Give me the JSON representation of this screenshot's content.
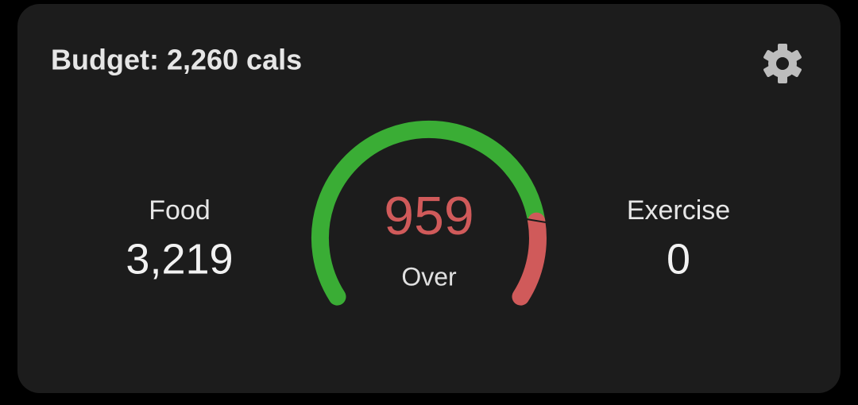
{
  "header": {
    "title": "Budget: 2,260 cals"
  },
  "food": {
    "label": "Food",
    "value": "3,219"
  },
  "gauge": {
    "value": "959",
    "label": "Over"
  },
  "exercise": {
    "label": "Exercise",
    "value": "0"
  }
}
